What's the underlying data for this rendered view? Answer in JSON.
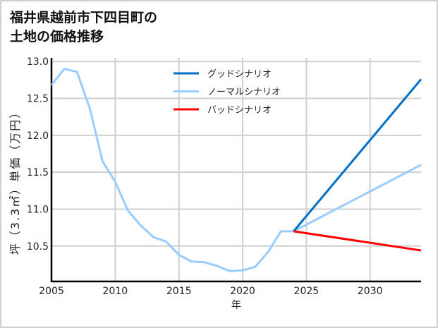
{
  "chart_data": {
    "type": "line",
    "title_lines": [
      "福井県越前市下四目町の",
      "土地の価格推移"
    ],
    "xlabel": "年",
    "ylabel": "坪（3.3㎡）単価（万円）",
    "xlim": [
      2005,
      2034
    ],
    "ylim": [
      10.02,
      13.05
    ],
    "xticks": [
      2005,
      2010,
      2015,
      2020,
      2025,
      2030
    ],
    "xtick_labels": [
      "2005",
      "2010",
      "2015",
      "2020",
      "2025",
      "2030"
    ],
    "yticks": [
      10.5,
      11.0,
      11.5,
      12.0,
      12.5,
      13.0
    ],
    "ytick_labels": [
      "10.5",
      "11.0",
      "11.5",
      "12.0",
      "12.5",
      "13.0"
    ],
    "grid": true,
    "legend_position": "top-center",
    "series": [
      {
        "name": "グッドシナリオ",
        "color": "#0070c8",
        "x": [
          2024,
          2034
        ],
        "y": [
          10.7,
          12.76
        ]
      },
      {
        "name": "ノーマルシナリオ",
        "color": "#99ccff",
        "x": [
          2005,
          2006,
          2007,
          2008,
          2009,
          2010,
          2011,
          2012,
          2013,
          2014,
          2015,
          2016,
          2017,
          2018,
          2019,
          2020,
          2021,
          2022,
          2023,
          2024,
          2034
        ],
        "y": [
          12.68,
          12.9,
          12.86,
          12.37,
          11.65,
          11.37,
          10.98,
          10.78,
          10.62,
          10.56,
          10.38,
          10.29,
          10.28,
          10.23,
          10.16,
          10.17,
          10.22,
          10.42,
          10.7,
          10.7,
          11.6
        ]
      },
      {
        "name": "バッドシナリオ",
        "color": "#ff0000",
        "x": [
          2024,
          2034
        ],
        "y": [
          10.7,
          10.44
        ]
      }
    ]
  }
}
